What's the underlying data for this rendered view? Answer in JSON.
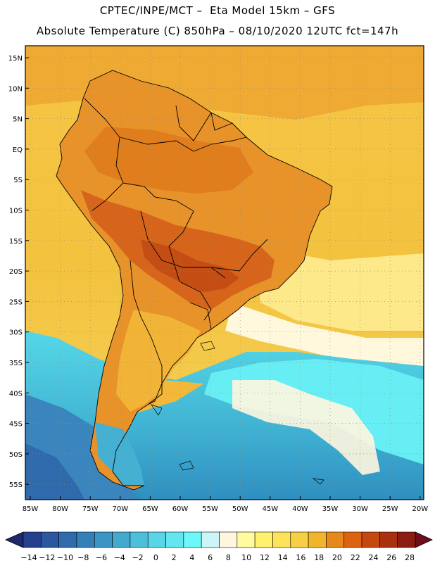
{
  "header": {
    "line1": "CPTEC/INPE/MCT –  Eta Model 15km – GFS",
    "line2": "Absolute Temperature (C) 850hPa – 08/10/2020 12UTC fct=147h"
  },
  "map": {
    "lat_labels": [
      "15N",
      "10N",
      "5N",
      "EQ",
      "5S",
      "10S",
      "15S",
      "20S",
      "25S",
      "30S",
      "35S",
      "40S",
      "45S",
      "50S",
      "55S"
    ],
    "lon_labels": [
      "85W",
      "80W",
      "75W",
      "70W",
      "65W",
      "60W",
      "55W",
      "50W",
      "45W",
      "40W",
      "35W",
      "30W",
      "25W",
      "20W"
    ]
  },
  "colorbar": {
    "labels": [
      "-14",
      "-12",
      "-10",
      "-8",
      "-6",
      "-4",
      "-2",
      "0",
      "2",
      "4",
      "6",
      "8",
      "10",
      "12",
      "14",
      "16",
      "18",
      "20",
      "22",
      "24",
      "26",
      "28"
    ],
    "low_color": "#1c2a6b",
    "high_color": "#6e0e1a",
    "colors": [
      "#24408e",
      "#2b56a0",
      "#2f6aac",
      "#3680b8",
      "#3c95c4",
      "#43a9cf",
      "#4ebfdb",
      "#5ad5e6",
      "#63e6ef",
      "#6ef7f8",
      "#cdf4f6",
      "#fff6df",
      "#fffb9e",
      "#fff070",
      "#fde35a",
      "#f7cf45",
      "#f0b52b",
      "#e58a1a",
      "#dc6410",
      "#c44810",
      "#a8300f",
      "#8c1c12"
    ]
  }
}
